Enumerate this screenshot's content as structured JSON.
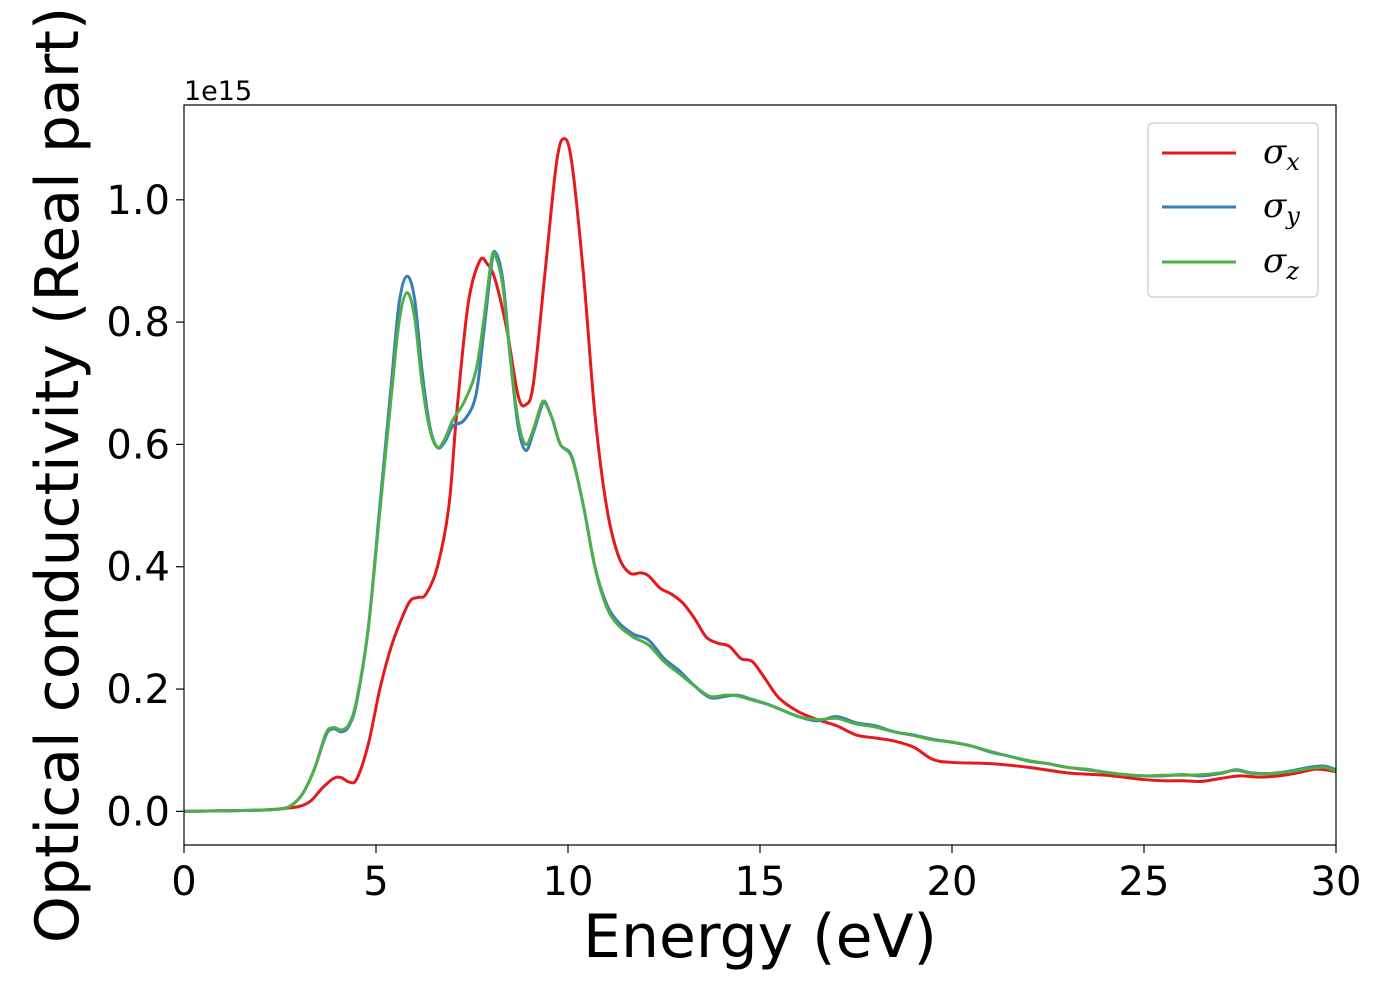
{
  "chart_data": {
    "type": "line",
    "xlabel": "Energy (eV)",
    "ylabel": "Optical conductivity (Real part)",
    "y_offset_label": "1e15",
    "xlim": [
      0,
      30
    ],
    "ylim": [
      -0.055,
      1.155
    ],
    "xticks": [
      0,
      5,
      10,
      15,
      20,
      25,
      30
    ],
    "xtick_labels": [
      "0",
      "5",
      "10",
      "15",
      "20",
      "25",
      "30"
    ],
    "yticks": [
      0.0,
      0.2,
      0.4,
      0.6,
      0.8,
      1.0
    ],
    "ytick_labels": [
      "0.0",
      "0.2",
      "0.4",
      "0.6",
      "0.8",
      "1.0"
    ],
    "grid": false,
    "legend_position": "top-right",
    "series": [
      {
        "name": "σx",
        "legend_main": "σ",
        "legend_sub": "x",
        "color": "#e41a1c",
        "points": [
          [
            0,
            0
          ],
          [
            1,
            0.001
          ],
          [
            2,
            0.002
          ],
          [
            2.5,
            0.004
          ],
          [
            3,
            0.008
          ],
          [
            3.3,
            0.017
          ],
          [
            3.6,
            0.038
          ],
          [
            3.9,
            0.054
          ],
          [
            4.1,
            0.055
          ],
          [
            4.3,
            0.048
          ],
          [
            4.5,
            0.053
          ],
          [
            4.8,
            0.11
          ],
          [
            5.1,
            0.2
          ],
          [
            5.4,
            0.27
          ],
          [
            5.7,
            0.32
          ],
          [
            5.9,
            0.345
          ],
          [
            6.1,
            0.35
          ],
          [
            6.3,
            0.355
          ],
          [
            6.6,
            0.4
          ],
          [
            6.9,
            0.5
          ],
          [
            7.1,
            0.65
          ],
          [
            7.4,
            0.83
          ],
          [
            7.7,
            0.9
          ],
          [
            7.9,
            0.895
          ],
          [
            8.1,
            0.87
          ],
          [
            8.4,
            0.79
          ],
          [
            8.7,
            0.68
          ],
          [
            8.9,
            0.665
          ],
          [
            9.1,
            0.7
          ],
          [
            9.4,
            0.88
          ],
          [
            9.7,
            1.06
          ],
          [
            9.9,
            1.1
          ],
          [
            10.1,
            1.06
          ],
          [
            10.4,
            0.88
          ],
          [
            10.7,
            0.65
          ],
          [
            11,
            0.5
          ],
          [
            11.3,
            0.42
          ],
          [
            11.6,
            0.39
          ],
          [
            11.9,
            0.39
          ],
          [
            12.1,
            0.385
          ],
          [
            12.4,
            0.365
          ],
          [
            12.7,
            0.355
          ],
          [
            13,
            0.34
          ],
          [
            13.3,
            0.315
          ],
          [
            13.6,
            0.285
          ],
          [
            13.9,
            0.275
          ],
          [
            14.2,
            0.27
          ],
          [
            14.5,
            0.25
          ],
          [
            14.8,
            0.245
          ],
          [
            15.1,
            0.22
          ],
          [
            15.5,
            0.185
          ],
          [
            16,
            0.163
          ],
          [
            16.5,
            0.15
          ],
          [
            17,
            0.14
          ],
          [
            17.5,
            0.125
          ],
          [
            18,
            0.12
          ],
          [
            18.5,
            0.115
          ],
          [
            19,
            0.105
          ],
          [
            19.5,
            0.085
          ],
          [
            20,
            0.08
          ],
          [
            21,
            0.078
          ],
          [
            22,
            0.072
          ],
          [
            23,
            0.063
          ],
          [
            24,
            0.059
          ],
          [
            25,
            0.052
          ],
          [
            25.5,
            0.05
          ],
          [
            26,
            0.05
          ],
          [
            26.5,
            0.049
          ],
          [
            27,
            0.054
          ],
          [
            27.5,
            0.058
          ],
          [
            28,
            0.056
          ],
          [
            28.5,
            0.058
          ],
          [
            29,
            0.063
          ],
          [
            29.5,
            0.069
          ],
          [
            30,
            0.065
          ]
        ]
      },
      {
        "name": "σy",
        "legend_main": "σ",
        "legend_sub": "y",
        "color": "#377eb8",
        "points": [
          [
            0,
            0
          ],
          [
            1,
            0.001
          ],
          [
            2,
            0.002
          ],
          [
            2.5,
            0.004
          ],
          [
            2.8,
            0.01
          ],
          [
            3.1,
            0.03
          ],
          [
            3.4,
            0.07
          ],
          [
            3.7,
            0.125
          ],
          [
            3.9,
            0.135
          ],
          [
            4.1,
            0.13
          ],
          [
            4.3,
            0.14
          ],
          [
            4.5,
            0.18
          ],
          [
            4.8,
            0.3
          ],
          [
            5.1,
            0.5
          ],
          [
            5.4,
            0.7
          ],
          [
            5.6,
            0.83
          ],
          [
            5.8,
            0.875
          ],
          [
            6,
            0.84
          ],
          [
            6.2,
            0.72
          ],
          [
            6.4,
            0.63
          ],
          [
            6.6,
            0.595
          ],
          [
            6.8,
            0.605
          ],
          [
            7,
            0.63
          ],
          [
            7.3,
            0.64
          ],
          [
            7.6,
            0.68
          ],
          [
            7.8,
            0.78
          ],
          [
            8,
            0.89
          ],
          [
            8.1,
            0.915
          ],
          [
            8.3,
            0.87
          ],
          [
            8.5,
            0.74
          ],
          [
            8.7,
            0.63
          ],
          [
            8.9,
            0.59
          ],
          [
            9.1,
            0.62
          ],
          [
            9.3,
            0.66
          ],
          [
            9.4,
            0.67
          ],
          [
            9.6,
            0.64
          ],
          [
            9.8,
            0.6
          ],
          [
            10.1,
            0.58
          ],
          [
            10.4,
            0.5
          ],
          [
            10.7,
            0.4
          ],
          [
            11,
            0.34
          ],
          [
            11.3,
            0.31
          ],
          [
            11.7,
            0.29
          ],
          [
            12.1,
            0.28
          ],
          [
            12.5,
            0.25
          ],
          [
            12.9,
            0.23
          ],
          [
            13.3,
            0.205
          ],
          [
            13.7,
            0.186
          ],
          [
            14.1,
            0.188
          ],
          [
            14.4,
            0.19
          ],
          [
            14.8,
            0.183
          ],
          [
            15.2,
            0.175
          ],
          [
            15.6,
            0.165
          ],
          [
            16,
            0.155
          ],
          [
            16.5,
            0.148
          ],
          [
            17,
            0.155
          ],
          [
            17.5,
            0.145
          ],
          [
            18,
            0.14
          ],
          [
            18.5,
            0.13
          ],
          [
            19,
            0.125
          ],
          [
            19.5,
            0.118
          ],
          [
            20,
            0.113
          ],
          [
            20.5,
            0.107
          ],
          [
            21,
            0.097
          ],
          [
            21.5,
            0.09
          ],
          [
            22,
            0.082
          ],
          [
            22.5,
            0.078
          ],
          [
            23,
            0.072
          ],
          [
            23.5,
            0.068
          ],
          [
            24,
            0.064
          ],
          [
            24.5,
            0.06
          ],
          [
            25,
            0.058
          ],
          [
            25.5,
            0.058
          ],
          [
            26,
            0.06
          ],
          [
            26.5,
            0.058
          ],
          [
            27,
            0.062
          ],
          [
            27.4,
            0.068
          ],
          [
            27.8,
            0.063
          ],
          [
            28.3,
            0.062
          ],
          [
            28.8,
            0.066
          ],
          [
            29.3,
            0.072
          ],
          [
            29.7,
            0.074
          ],
          [
            30,
            0.068
          ]
        ]
      },
      {
        "name": "σz",
        "legend_main": "σ",
        "legend_sub": "z",
        "color": "#4daf4a",
        "points": [
          [
            0,
            0
          ],
          [
            1,
            0.001
          ],
          [
            2,
            0.002
          ],
          [
            2.5,
            0.004
          ],
          [
            2.8,
            0.01
          ],
          [
            3.1,
            0.03
          ],
          [
            3.4,
            0.07
          ],
          [
            3.7,
            0.128
          ],
          [
            3.9,
            0.137
          ],
          [
            4.1,
            0.133
          ],
          [
            4.3,
            0.143
          ],
          [
            4.5,
            0.183
          ],
          [
            4.8,
            0.3
          ],
          [
            5.1,
            0.49
          ],
          [
            5.4,
            0.68
          ],
          [
            5.6,
            0.8
          ],
          [
            5.8,
            0.848
          ],
          [
            6,
            0.81
          ],
          [
            6.2,
            0.7
          ],
          [
            6.4,
            0.625
          ],
          [
            6.6,
            0.595
          ],
          [
            6.8,
            0.61
          ],
          [
            7,
            0.64
          ],
          [
            7.3,
            0.67
          ],
          [
            7.6,
            0.72
          ],
          [
            7.8,
            0.8
          ],
          [
            8,
            0.9
          ],
          [
            8.1,
            0.91
          ],
          [
            8.3,
            0.86
          ],
          [
            8.5,
            0.74
          ],
          [
            8.7,
            0.64
          ],
          [
            8.9,
            0.6
          ],
          [
            9.1,
            0.625
          ],
          [
            9.3,
            0.665
          ],
          [
            9.4,
            0.668
          ],
          [
            9.6,
            0.64
          ],
          [
            9.8,
            0.6
          ],
          [
            10.1,
            0.578
          ],
          [
            10.4,
            0.5
          ],
          [
            10.7,
            0.4
          ],
          [
            11,
            0.335
          ],
          [
            11.3,
            0.305
          ],
          [
            11.7,
            0.285
          ],
          [
            12.1,
            0.272
          ],
          [
            12.5,
            0.245
          ],
          [
            12.9,
            0.225
          ],
          [
            13.3,
            0.205
          ],
          [
            13.7,
            0.188
          ],
          [
            14.1,
            0.19
          ],
          [
            14.4,
            0.189
          ],
          [
            14.8,
            0.182
          ],
          [
            15.2,
            0.175
          ],
          [
            15.6,
            0.165
          ],
          [
            16,
            0.155
          ],
          [
            16.5,
            0.15
          ],
          [
            17,
            0.152
          ],
          [
            17.5,
            0.143
          ],
          [
            18,
            0.138
          ],
          [
            18.5,
            0.13
          ],
          [
            19,
            0.124
          ],
          [
            19.5,
            0.117
          ],
          [
            20,
            0.113
          ],
          [
            20.5,
            0.107
          ],
          [
            21,
            0.098
          ],
          [
            21.5,
            0.09
          ],
          [
            22,
            0.083
          ],
          [
            22.5,
            0.078
          ],
          [
            23,
            0.072
          ],
          [
            23.5,
            0.069
          ],
          [
            24,
            0.064
          ],
          [
            24.5,
            0.06
          ],
          [
            25,
            0.058
          ],
          [
            25.5,
            0.059
          ],
          [
            26,
            0.059
          ],
          [
            26.5,
            0.06
          ],
          [
            27,
            0.063
          ],
          [
            27.4,
            0.067
          ],
          [
            27.8,
            0.062
          ],
          [
            28.3,
            0.062
          ],
          [
            28.8,
            0.065
          ],
          [
            29.3,
            0.07
          ],
          [
            29.7,
            0.072
          ],
          [
            30,
            0.066
          ]
        ]
      }
    ]
  }
}
